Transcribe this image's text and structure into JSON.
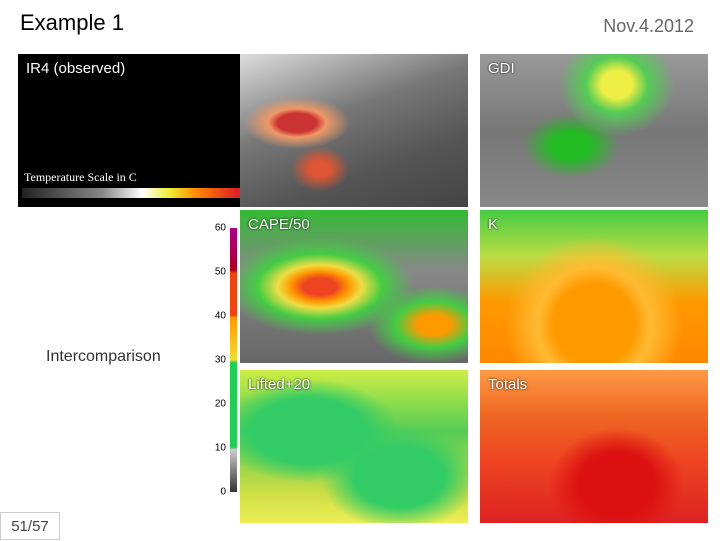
{
  "header": {
    "title": "Example 1",
    "date": "Nov.4.2012"
  },
  "panels": [
    "IR4 (observed)",
    "GDI",
    "CAPE/50",
    "K",
    "Lifted+20",
    "Totals"
  ],
  "temperature_scale": {
    "label": "Temperature Scale in C"
  },
  "colorbar": {
    "ticks": [
      0,
      10,
      20,
      30,
      40,
      50,
      60
    ],
    "range": [
      0,
      60
    ]
  },
  "side_label": "Intercomparison",
  "footer": {
    "page": "51/57"
  }
}
